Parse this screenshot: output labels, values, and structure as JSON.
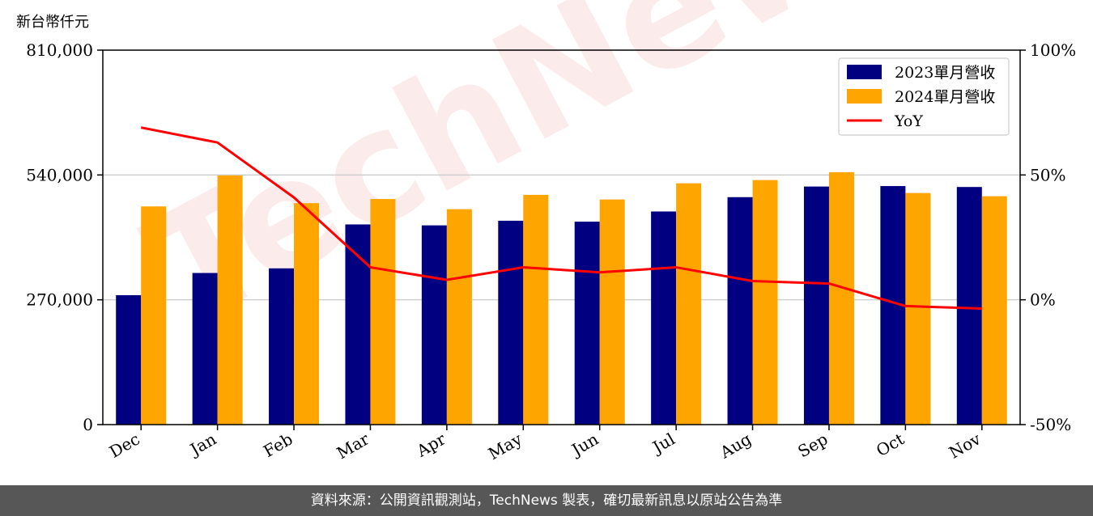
{
  "chart_data": {
    "type": "bar",
    "unit_label": "新台幣仟元",
    "categories": [
      "Dec",
      "Jan",
      "Feb",
      "Mar",
      "Apr",
      "May",
      "Jun",
      "Jul",
      "Aug",
      "Sep",
      "Oct",
      "Nov"
    ],
    "series": [
      {
        "name": "2023單月營收",
        "type": "bar",
        "axis": "left",
        "color": "#000080",
        "values": [
          280000,
          328000,
          338000,
          433000,
          431000,
          441000,
          439000,
          461000,
          492000,
          515000,
          516000,
          514000
        ]
      },
      {
        "name": "2024單月營收",
        "type": "bar",
        "axis": "left",
        "color": "#FFA500",
        "values": [
          472000,
          539000,
          479000,
          488000,
          466000,
          497000,
          487000,
          522000,
          529000,
          546000,
          501000,
          494000
        ]
      },
      {
        "name": "YoY",
        "type": "line",
        "axis": "right",
        "color": "#FF0000",
        "values": [
          69,
          63,
          41,
          13,
          8,
          13,
          11,
          13,
          7.5,
          6.5,
          -2.5,
          -3.5
        ]
      }
    ],
    "ylim": [
      0,
      810000
    ],
    "yticks": [
      0,
      270000,
      540000,
      810000
    ],
    "ytick_labels": [
      "0",
      "270,000",
      "540,000",
      "810,000"
    ],
    "y2lim": [
      -50,
      100
    ],
    "y2ticks": [
      -50,
      0,
      50,
      100
    ],
    "y2tick_labels": [
      "-50%",
      "0%",
      "50%",
      "100%"
    ],
    "grid": "horizontal",
    "legend_position": "top-right"
  },
  "footer_text": "資料來源：公開資訊觀測站，TechNews 製表，確切最新訊息以原站公告為準",
  "watermark": "TechNews"
}
